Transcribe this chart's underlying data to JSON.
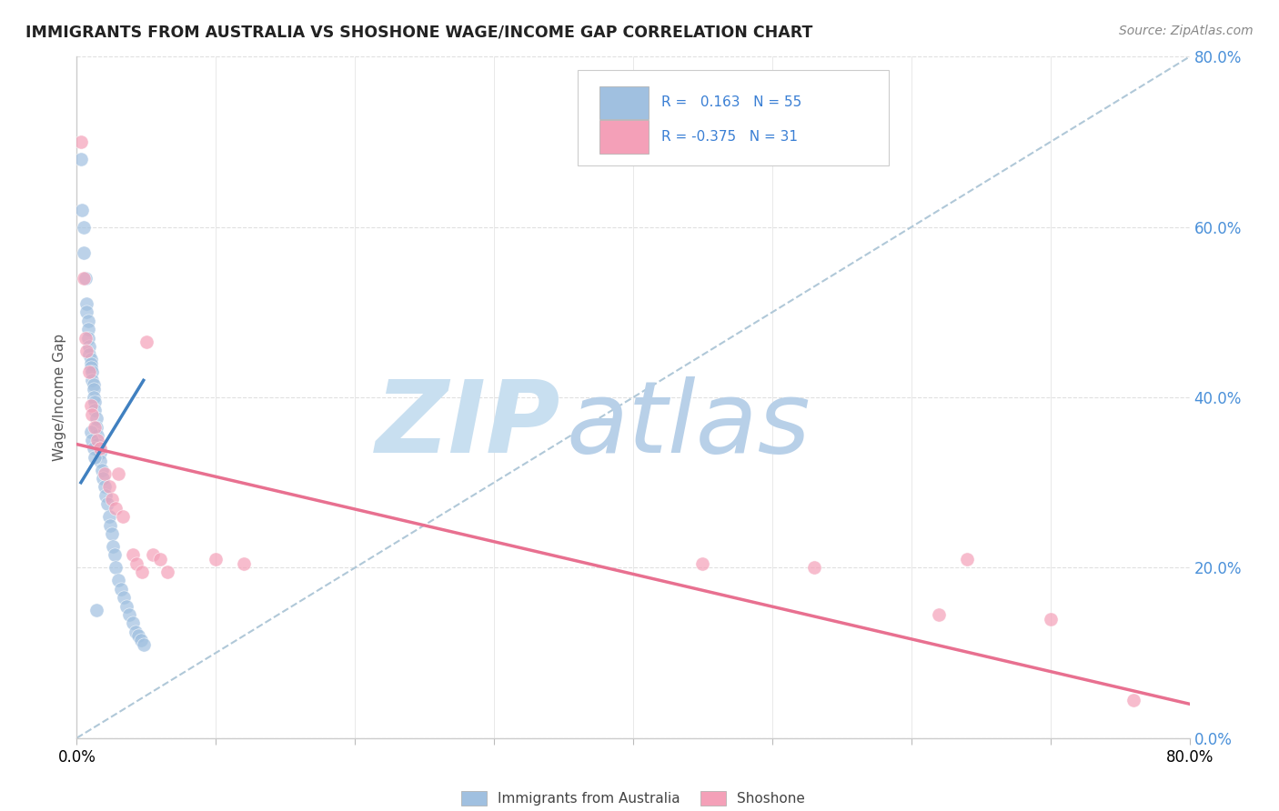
{
  "title": "IMMIGRANTS FROM AUSTRALIA VS SHOSHONE WAGE/INCOME GAP CORRELATION CHART",
  "source": "Source: ZipAtlas.com",
  "ylabel": "Wage/Income Gap",
  "legend_entries": [
    {
      "label": "Immigrants from Australia",
      "R": "0.163",
      "N": "55",
      "color": "#a8c8e8"
    },
    {
      "label": "Shoshone",
      "R": "-0.375",
      "N": "31",
      "color": "#f4a8bc"
    }
  ],
  "xmin": 0.0,
  "xmax": 0.8,
  "ymin": 0.0,
  "ymax": 0.8,
  "yticks": [
    0.0,
    0.2,
    0.4,
    0.6,
    0.8
  ],
  "ytick_labels": [
    "0.0%",
    "20.0%",
    "40.0%",
    "60.0%",
    "80.0%"
  ],
  "blue_scatter_x": [
    0.003,
    0.004,
    0.005,
    0.005,
    0.006,
    0.007,
    0.007,
    0.008,
    0.008,
    0.008,
    0.009,
    0.009,
    0.01,
    0.01,
    0.01,
    0.011,
    0.011,
    0.012,
    0.012,
    0.012,
    0.013,
    0.013,
    0.014,
    0.014,
    0.015,
    0.015,
    0.016,
    0.017,
    0.017,
    0.018,
    0.019,
    0.02,
    0.021,
    0.022,
    0.023,
    0.024,
    0.025,
    0.026,
    0.027,
    0.028,
    0.03,
    0.032,
    0.034,
    0.036,
    0.038,
    0.04,
    0.042,
    0.044,
    0.046,
    0.048,
    0.01,
    0.011,
    0.012,
    0.013,
    0.014
  ],
  "blue_scatter_y": [
    0.68,
    0.62,
    0.6,
    0.57,
    0.54,
    0.51,
    0.5,
    0.49,
    0.48,
    0.47,
    0.46,
    0.45,
    0.445,
    0.44,
    0.435,
    0.43,
    0.42,
    0.415,
    0.41,
    0.4,
    0.395,
    0.385,
    0.375,
    0.365,
    0.355,
    0.345,
    0.34,
    0.335,
    0.325,
    0.315,
    0.305,
    0.295,
    0.285,
    0.275,
    0.26,
    0.25,
    0.24,
    0.225,
    0.215,
    0.2,
    0.185,
    0.175,
    0.165,
    0.155,
    0.145,
    0.135,
    0.125,
    0.12,
    0.115,
    0.11,
    0.36,
    0.35,
    0.34,
    0.33,
    0.15
  ],
  "pink_scatter_x": [
    0.003,
    0.005,
    0.006,
    0.007,
    0.009,
    0.01,
    0.011,
    0.013,
    0.015,
    0.017,
    0.02,
    0.023,
    0.025,
    0.028,
    0.03,
    0.033,
    0.04,
    0.043,
    0.047,
    0.05,
    0.055,
    0.06,
    0.065,
    0.1,
    0.12,
    0.45,
    0.53,
    0.62,
    0.64,
    0.7,
    0.76
  ],
  "pink_scatter_y": [
    0.7,
    0.54,
    0.47,
    0.455,
    0.43,
    0.39,
    0.38,
    0.365,
    0.35,
    0.34,
    0.31,
    0.295,
    0.28,
    0.27,
    0.31,
    0.26,
    0.215,
    0.205,
    0.195,
    0.465,
    0.215,
    0.21,
    0.195,
    0.21,
    0.205,
    0.205,
    0.2,
    0.145,
    0.21,
    0.14,
    0.045
  ],
  "blue_line_x": [
    0.003,
    0.048
  ],
  "blue_line_y": [
    0.3,
    0.42
  ],
  "pink_line_x": [
    0.0,
    0.8
  ],
  "pink_line_y": [
    0.345,
    0.04
  ],
  "dashed_line_x": [
    0.0,
    0.8
  ],
  "dashed_line_y": [
    0.0,
    0.8
  ],
  "blue_color": "#a0c0e0",
  "pink_color": "#f4a0b8",
  "blue_line_color": "#4080c0",
  "pink_line_color": "#e87090",
  "dashed_color": "#b0c8d8",
  "watermark_zip_color": "#c8dff0",
  "watermark_atlas_color": "#b8d0e8",
  "background_color": "#ffffff",
  "grid_color": "#e0e0e0",
  "grid_style": "--"
}
